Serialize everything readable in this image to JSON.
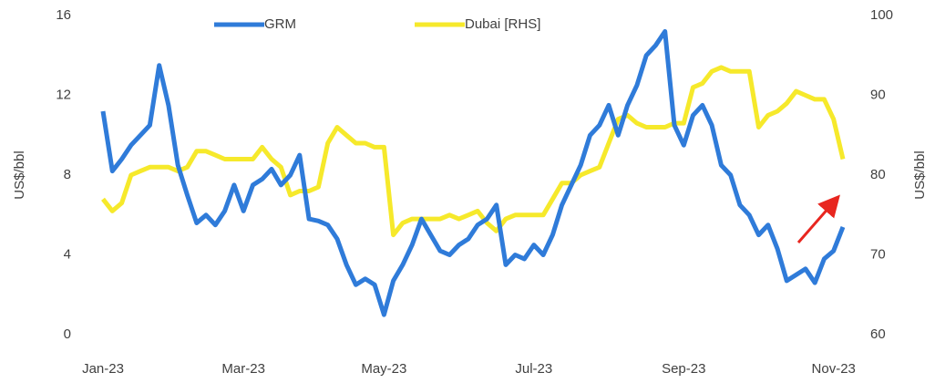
{
  "chart_data": {
    "type": "line",
    "categories": [
      "Jan-23",
      null,
      null,
      null,
      null,
      null,
      null,
      null,
      null,
      null,
      null,
      null,
      null,
      null,
      null,
      "Mar-23",
      null,
      null,
      null,
      null,
      null,
      null,
      null,
      null,
      null,
      null,
      null,
      null,
      null,
      null,
      "May-23",
      null,
      null,
      null,
      null,
      null,
      null,
      null,
      null,
      null,
      null,
      null,
      null,
      null,
      null,
      null,
      "Jul-23",
      null,
      null,
      null,
      null,
      null,
      null,
      null,
      null,
      null,
      null,
      null,
      null,
      null,
      null,
      null,
      "Sep-23",
      null,
      null,
      null,
      null,
      null,
      null,
      null,
      null,
      null,
      null,
      null,
      null,
      null,
      null,
      null,
      "Nov-23",
      null
    ],
    "series": [
      {
        "name": "GRM",
        "color": "#2f7bd9",
        "axis": "y",
        "values": [
          11.2,
          8.2,
          8.8,
          9.5,
          10.0,
          10.5,
          13.5,
          11.5,
          8.5,
          7.0,
          5.6,
          6.0,
          5.5,
          6.2,
          7.5,
          6.2,
          7.5,
          7.8,
          8.3,
          7.5,
          8.0,
          9.0,
          5.8,
          5.7,
          5.5,
          4.8,
          3.5,
          2.5,
          2.8,
          2.5,
          1.0,
          2.7,
          3.5,
          4.5,
          5.8,
          5.0,
          4.2,
          4.0,
          4.5,
          4.8,
          5.5,
          5.8,
          6.5,
          3.5,
          4.0,
          3.8,
          4.5,
          4.0,
          5.0,
          6.5,
          7.5,
          8.5,
          10.0,
          10.5,
          11.5,
          10.0,
          11.5,
          12.5,
          14.0,
          14.5,
          15.2,
          10.5,
          9.5,
          11.0,
          11.5,
          10.5,
          8.5,
          8.0,
          6.5,
          6.0,
          5.0,
          5.5,
          4.3,
          2.7,
          3.0,
          3.3,
          2.6,
          3.8,
          4.2,
          5.4
        ]
      },
      {
        "name": "Dubai [RHS]",
        "color": "#f6e92b",
        "axis": "y2",
        "values": [
          77,
          75.5,
          76.5,
          80,
          80.5,
          81,
          81,
          81,
          80.5,
          81,
          83,
          83,
          82.5,
          82,
          82,
          82,
          82,
          83.5,
          82,
          81,
          77.5,
          78,
          78,
          78.5,
          84,
          86,
          85,
          84,
          84,
          83.5,
          83.5,
          72.5,
          74,
          74.5,
          74.5,
          74.5,
          74.5,
          75,
          74.5,
          75,
          75.5,
          74,
          73,
          74.5,
          75,
          75,
          75,
          75,
          77,
          79,
          79,
          80,
          80.5,
          81,
          84,
          87,
          87.5,
          86.5,
          86,
          86,
          86,
          86.5,
          86.5,
          91,
          91.5,
          93,
          93.5,
          93,
          93,
          93,
          86,
          87.5,
          88,
          89,
          90.5,
          90,
          89.5,
          89.5,
          87,
          82
        ]
      }
    ],
    "ylabel": "US$/bbl",
    "y2label": "US$/bbl",
    "ylim": [
      0,
      16
    ],
    "yticks": [
      0,
      4,
      8,
      12,
      16
    ],
    "y2lim": [
      60,
      100
    ],
    "y2ticks": [
      60,
      70,
      80,
      90,
      100
    ],
    "legend": "top"
  }
}
